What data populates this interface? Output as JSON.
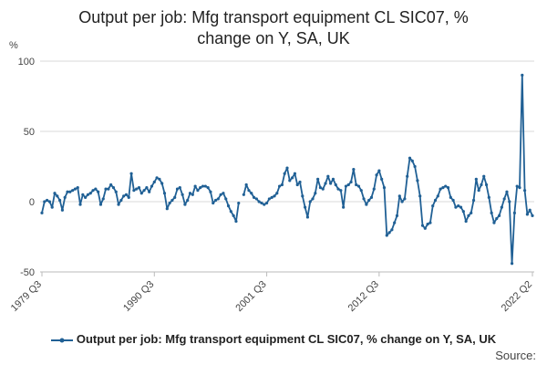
{
  "chart_data": {
    "type": "line",
    "title": "Output per job: Mfg transport equipment CL SIC07, % change on Y, SA, UK",
    "title_lines": [
      "Output per job: Mfg transport equipment CL SIC07, %",
      "change on Y, SA, UK"
    ],
    "ylabel": "%",
    "xlabel": "",
    "ylim": [
      -50,
      100
    ],
    "yticks": [
      -50,
      0,
      50,
      100
    ],
    "x_tick_labels": [
      "1979 Q3",
      "1990 Q3",
      "2001 Q3",
      "2012 Q3",
      "2022 Q2"
    ],
    "x_start": "1979 Q3",
    "x_end": "2022 Q2",
    "grid": "horizontal",
    "legend_position": "bottom",
    "color": "#206095",
    "series": [
      {
        "name": "Output per job: Mfg transport equipment CL SIC07, % change on Y, SA, UK",
        "values": [
          -8,
          0,
          1,
          0,
          -4,
          6,
          4,
          1,
          -6,
          3,
          7,
          7,
          8,
          9,
          10,
          -2,
          5,
          3,
          5,
          6,
          8,
          9,
          7,
          -2,
          2,
          9,
          9,
          12,
          10,
          7,
          -2,
          1,
          4,
          5,
          3,
          20,
          8,
          9,
          10,
          6,
          8,
          10,
          7,
          11,
          14,
          17,
          16,
          13,
          6,
          -5,
          -1,
          1,
          3,
          9,
          10,
          5,
          -2,
          1,
          6,
          5,
          11,
          8,
          10,
          11,
          11,
          10,
          7,
          -1,
          1,
          2,
          5,
          6,
          2,
          -3,
          -7,
          -10,
          -14,
          -1,
          null,
          5,
          12,
          8,
          6,
          3,
          2,
          0,
          -1,
          -2,
          -1,
          2,
          3,
          4,
          6,
          11,
          12,
          20,
          24,
          15,
          17,
          20,
          12,
          14,
          4,
          -4,
          -11,
          0,
          2,
          6,
          16,
          10,
          9,
          13,
          18,
          13,
          16,
          12,
          9,
          8,
          -4,
          11,
          12,
          14,
          23,
          12,
          11,
          8,
          2,
          -2,
          1,
          3,
          9,
          19,
          22,
          16,
          10,
          -24,
          -22,
          -20,
          -15,
          -10,
          4,
          0,
          2,
          18,
          31,
          29,
          25,
          15,
          4,
          -17,
          -19,
          -16,
          -15,
          -3,
          1,
          4,
          9,
          10,
          11,
          10,
          3,
          1,
          -4,
          -3,
          -4,
          -7,
          -14,
          -10,
          -8,
          1,
          16,
          8,
          12,
          18,
          12,
          3,
          -8,
          -15,
          -12,
          -10,
          -4,
          2,
          7,
          0,
          -44,
          -8,
          11,
          10,
          90,
          8,
          -9,
          -6,
          -10
        ]
      }
    ]
  },
  "footer": {
    "source_label": "Source:"
  }
}
